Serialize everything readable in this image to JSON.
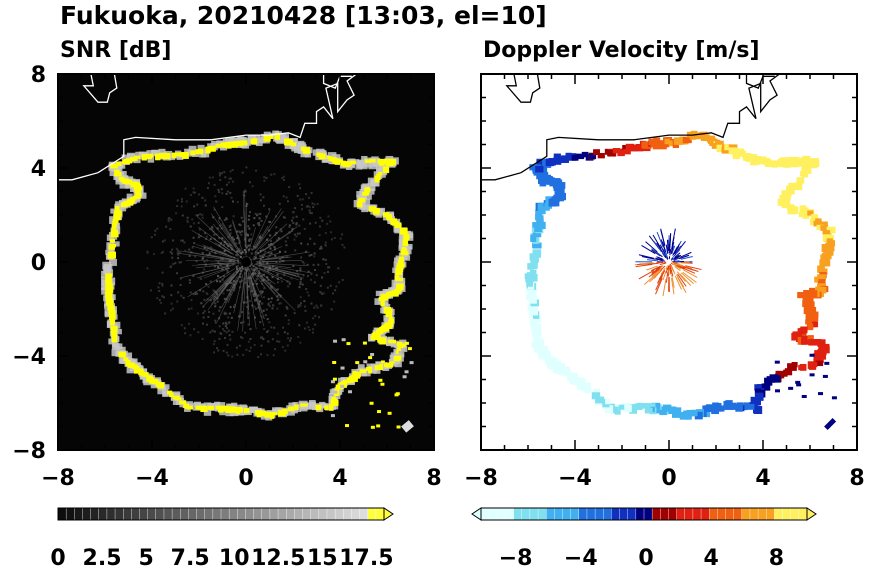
{
  "figure_title": "Fukuoka, 20210428 [13:03, el=10]",
  "chart_data": [
    {
      "type": "heatmap",
      "panel": "left",
      "title": "SNR [dB]",
      "xlim": [
        -8,
        8
      ],
      "ylim": [
        -8,
        8
      ],
      "x_ticks": [
        "−8",
        "−4",
        "0",
        "4",
        "8"
      ],
      "y_ticks": [
        "8",
        "4",
        "0",
        "−4",
        "−8"
      ],
      "background": "#000000",
      "colorbar": {
        "type": "gray-to-yellow",
        "labels": [
          "0",
          "2.5",
          "5",
          "7.5",
          "10",
          "12.5",
          "15",
          "17.5"
        ],
        "range": [
          0,
          18.5
        ],
        "extend": "max"
      }
    },
    {
      "type": "heatmap",
      "panel": "right",
      "title": "Doppler Velocity [m/s]",
      "xlim": [
        -8,
        8
      ],
      "ylim": [
        -8,
        8
      ],
      "x_ticks": [
        "−8",
        "−4",
        "0",
        "4",
        "8"
      ],
      "y_ticks": [
        "8",
        "4",
        "0",
        "−4",
        "−8"
      ],
      "background": "#ffffff",
      "colorbar": {
        "type": "diverging-blue-red",
        "labels": [
          "−8",
          "−4",
          "0",
          "4",
          "8"
        ],
        "range": [
          -10,
          10
        ],
        "extend": "both"
      }
    }
  ],
  "colors": {
    "ring_yellow": "#ffff00",
    "ring_gray": "#d0d0d0",
    "coast": "#ffffff"
  }
}
